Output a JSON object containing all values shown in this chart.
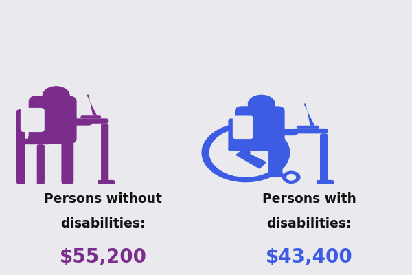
{
  "bg_color": "#e9e9ee",
  "left_color": "#7b2d8b",
  "right_color": "#3d5ce4",
  "left_label_line1": "Persons without",
  "left_label_line2": "disabilities:",
  "left_value": "$55,200",
  "right_label_line1": "Persons with",
  "right_label_line2": "disabilities:",
  "right_value": "$43,400",
  "label_fontsize": 13.5,
  "value_fontsize": 20,
  "label_color": "#111111",
  "figwidth": 6.0,
  "figheight": 4.0,
  "dpi": 100
}
